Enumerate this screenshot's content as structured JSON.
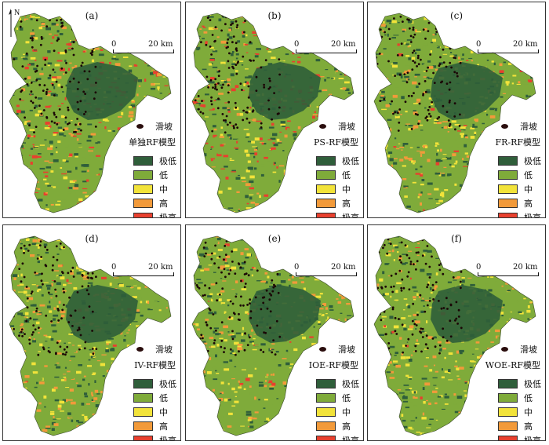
{
  "north_label": "N",
  "landslide_label": "滑坡",
  "scale": {
    "zero": "0",
    "distance": "20 km"
  },
  "legend": [
    {
      "label": "极低",
      "color": "#2f5e3a"
    },
    {
      "label": "低",
      "color": "#7fab3a"
    },
    {
      "label": "中",
      "color": "#f2e33a"
    },
    {
      "label": "高",
      "color": "#f29a3a"
    },
    {
      "label": "极高",
      "color": "#e8402e"
    }
  ],
  "panels": [
    {
      "id": "a",
      "label": "(a)",
      "model": "单独RF模型",
      "show_north": true
    },
    {
      "id": "b",
      "label": "(b)",
      "model": "PS-RF模型",
      "show_north": false
    },
    {
      "id": "c",
      "label": "(c)",
      "model": "FR-RF模型",
      "show_north": false
    },
    {
      "id": "d",
      "label": "(d)",
      "model": "IV-RF模型",
      "show_north": false
    },
    {
      "id": "e",
      "label": "(e)",
      "model": "IOE-RF模型",
      "show_north": false
    },
    {
      "id": "f",
      "label": "(f)",
      "model": "WOE-RF模型",
      "show_north": false
    }
  ]
}
